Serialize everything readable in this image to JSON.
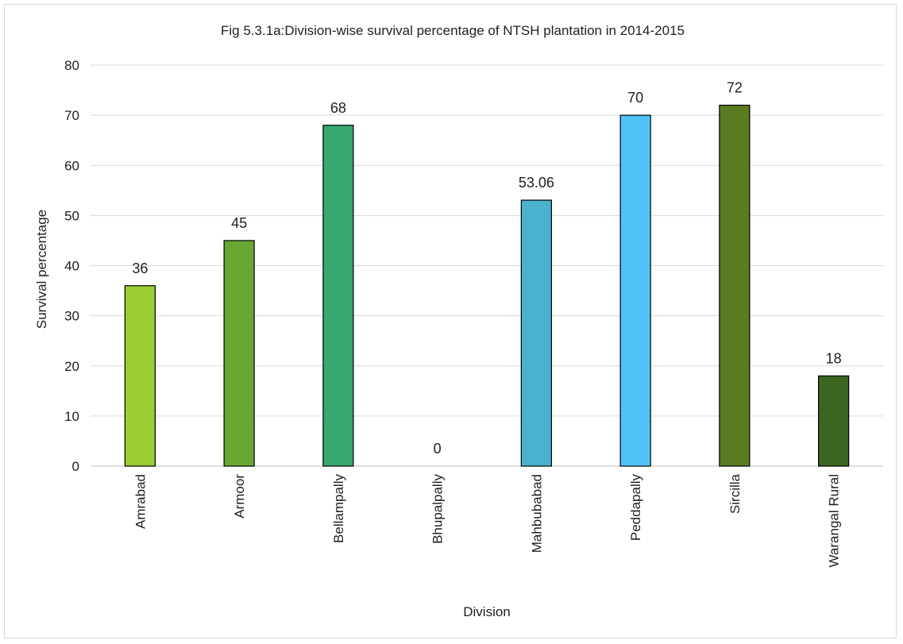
{
  "chart_data": {
    "type": "bar",
    "title": "Fig 5.3.1a:Division-wise survival percentage of NTSH plantation in 2014-2015",
    "xlabel": "Division",
    "ylabel": "Survival percentage",
    "ylim": [
      0,
      80
    ],
    "yticks": [
      0,
      10,
      20,
      30,
      40,
      50,
      60,
      70,
      80
    ],
    "grid": true,
    "legend": "none",
    "categories": [
      "Amrabad",
      "Armoor",
      "Bellampally",
      "Bhupalpally",
      "Mahbubabad",
      "Peddapally",
      "Sircilla",
      "Warangal Rural"
    ],
    "values": [
      36,
      45,
      68,
      0,
      53.06,
      70,
      72,
      18
    ],
    "data_labels": [
      "36",
      "45",
      "68",
      "0",
      "53.06",
      "70",
      "72",
      "18"
    ],
    "colors": [
      "#9ACD32",
      "#66A832",
      "#38A86E",
      "#3C9A7A",
      "#4AB2CE",
      "#4FC3F7",
      "#5B7B22",
      "#3B6622"
    ]
  }
}
